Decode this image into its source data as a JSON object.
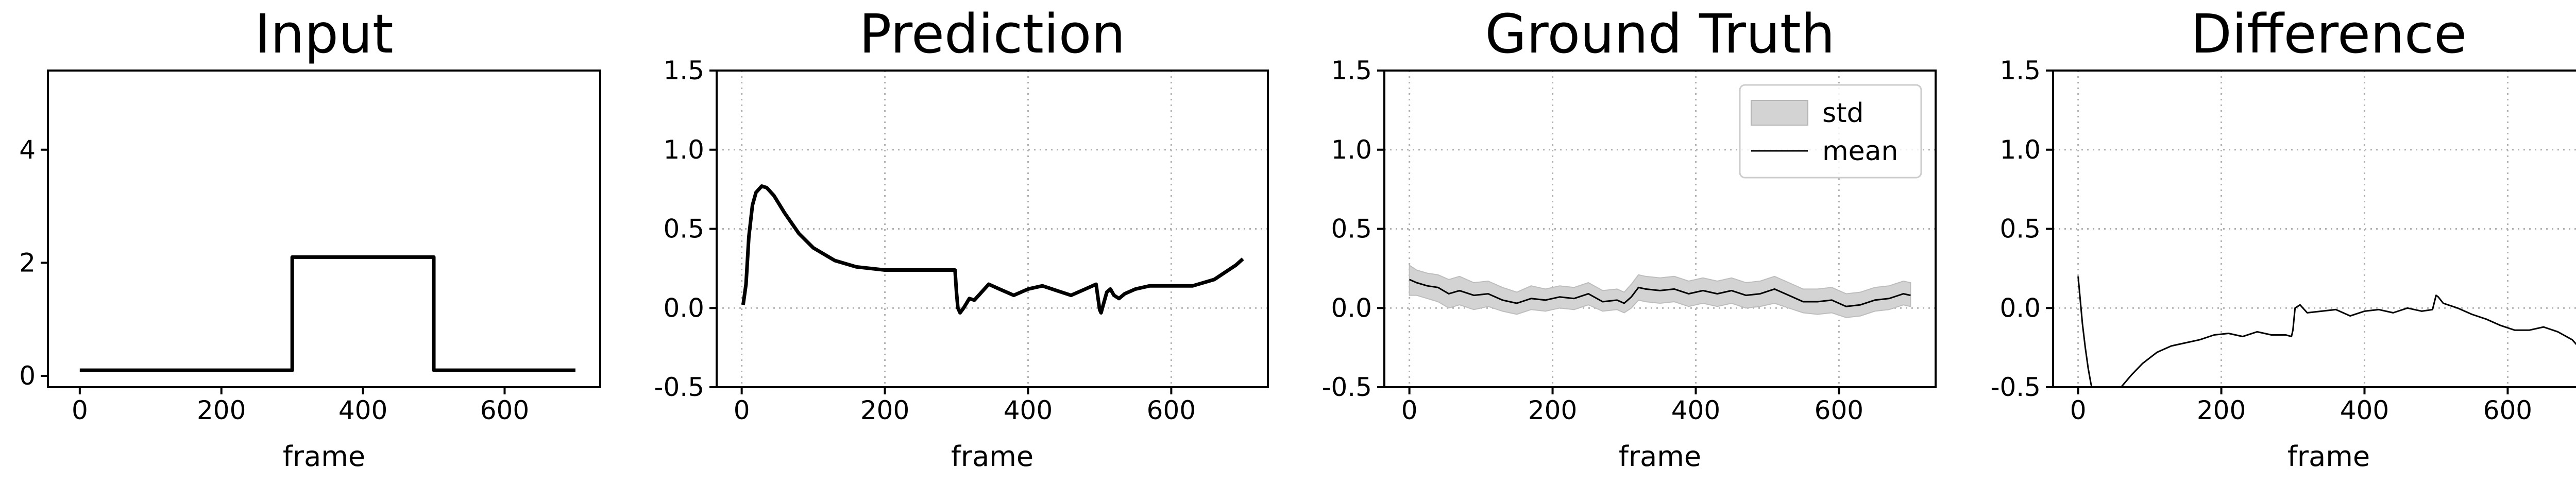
{
  "chart_data": [
    {
      "type": "line",
      "title": "Input",
      "xlabel": "frame",
      "ylabel": "",
      "xlim": [
        -45,
        735
      ],
      "ylim": [
        -0.2,
        5.4
      ],
      "xticks": [
        0,
        200,
        400,
        600
      ],
      "yticks": [
        0,
        2,
        4
      ],
      "grid": false,
      "series": [
        {
          "role": "line",
          "color": "#000000",
          "x": [
            0,
            300,
            300,
            500,
            500,
            700
          ],
          "y": [
            0.1,
            0.1,
            2.1,
            2.1,
            0.1,
            0.1
          ]
        }
      ]
    },
    {
      "type": "line",
      "title": "Prediction",
      "xlabel": "frame",
      "ylabel": "",
      "xlim": [
        -35,
        735
      ],
      "ylim": [
        -0.5,
        1.5
      ],
      "xticks": [
        0,
        200,
        400,
        600
      ],
      "yticks": [
        -0.5,
        0.0,
        0.5,
        1.0,
        1.5
      ],
      "grid": true,
      "series": [
        {
          "role": "line",
          "color": "#000000",
          "x": [
            2,
            6,
            10,
            15,
            20,
            28,
            35,
            45,
            60,
            80,
            100,
            130,
            160,
            200,
            240,
            280,
            298,
            300,
            302,
            305,
            310,
            318,
            325,
            335,
            345,
            360,
            380,
            400,
            420,
            440,
            460,
            480,
            495,
            500,
            502,
            505,
            510,
            515,
            520,
            527,
            535,
            550,
            570,
            600,
            630,
            660,
            690,
            700
          ],
          "y": [
            0.02,
            0.15,
            0.45,
            0.65,
            0.73,
            0.77,
            0.76,
            0.71,
            0.6,
            0.47,
            0.38,
            0.3,
            0.26,
            0.24,
            0.24,
            0.24,
            0.24,
            0.1,
            0.0,
            -0.03,
            0.0,
            0.06,
            0.05,
            0.1,
            0.15,
            0.12,
            0.08,
            0.12,
            0.14,
            0.11,
            0.08,
            0.12,
            0.15,
            -0.01,
            -0.03,
            0.02,
            0.1,
            0.12,
            0.08,
            0.06,
            0.09,
            0.12,
            0.14,
            0.14,
            0.14,
            0.18,
            0.27,
            0.31
          ]
        }
      ]
    },
    {
      "type": "area",
      "title": "Ground Truth",
      "xlabel": "frame",
      "ylabel": "",
      "xlim": [
        -35,
        735
      ],
      "ylim": [
        -0.5,
        1.5
      ],
      "xticks": [
        0,
        200,
        400,
        600
      ],
      "yticks": [
        -0.5,
        0.0,
        0.5,
        1.0,
        1.5
      ],
      "grid": true,
      "legend": {
        "placement": "top-right",
        "entries": [
          "std",
          "mean"
        ]
      },
      "series": [
        {
          "name": "std",
          "role": "band",
          "color": "#d3d3d3",
          "x": [
            0,
            10,
            25,
            40,
            55,
            70,
            90,
            110,
            130,
            150,
            170,
            190,
            210,
            230,
            250,
            270,
            290,
            300,
            310,
            320,
            330,
            350,
            370,
            390,
            410,
            430,
            450,
            470,
            490,
            510,
            530,
            550,
            570,
            590,
            610,
            630,
            650,
            670,
            690,
            700
          ],
          "y_low": [
            0.08,
            0.08,
            0.06,
            0.04,
            0.0,
            0.02,
            -0.01,
            0.01,
            -0.02,
            -0.04,
            -0.01,
            -0.02,
            0.0,
            -0.01,
            0.02,
            -0.02,
            -0.01,
            -0.03,
            0.0,
            0.05,
            0.04,
            0.03,
            0.04,
            0.01,
            0.03,
            0.01,
            0.03,
            0.0,
            0.01,
            0.03,
            0.0,
            -0.03,
            -0.04,
            -0.03,
            -0.06,
            -0.05,
            -0.02,
            -0.01,
            0.02,
            0.01
          ],
          "y_high": [
            0.27,
            0.24,
            0.22,
            0.21,
            0.18,
            0.2,
            0.16,
            0.17,
            0.13,
            0.1,
            0.14,
            0.12,
            0.14,
            0.13,
            0.16,
            0.11,
            0.12,
            0.1,
            0.15,
            0.21,
            0.2,
            0.19,
            0.2,
            0.17,
            0.19,
            0.17,
            0.19,
            0.16,
            0.17,
            0.2,
            0.16,
            0.12,
            0.12,
            0.13,
            0.09,
            0.1,
            0.13,
            0.14,
            0.17,
            0.16
          ]
        },
        {
          "name": "mean",
          "role": "line",
          "color": "#000000",
          "x": [
            0,
            10,
            25,
            40,
            55,
            70,
            90,
            110,
            130,
            150,
            170,
            190,
            210,
            230,
            250,
            270,
            290,
            300,
            310,
            320,
            330,
            350,
            370,
            390,
            410,
            430,
            450,
            470,
            490,
            510,
            530,
            550,
            570,
            590,
            610,
            630,
            650,
            670,
            690,
            700
          ],
          "y": [
            0.18,
            0.16,
            0.14,
            0.13,
            0.09,
            0.11,
            0.08,
            0.09,
            0.05,
            0.03,
            0.06,
            0.05,
            0.07,
            0.06,
            0.09,
            0.04,
            0.05,
            0.03,
            0.07,
            0.13,
            0.12,
            0.11,
            0.12,
            0.09,
            0.11,
            0.09,
            0.11,
            0.08,
            0.09,
            0.12,
            0.08,
            0.04,
            0.04,
            0.05,
            0.01,
            0.02,
            0.05,
            0.06,
            0.09,
            0.08
          ]
        }
      ]
    },
    {
      "type": "line",
      "title": "Difference",
      "xlabel": "frame",
      "ylabel": "",
      "xlim": [
        -35,
        735
      ],
      "ylim": [
        -0.5,
        1.5
      ],
      "xticks": [
        0,
        200,
        400,
        600
      ],
      "yticks": [
        -0.5,
        0.0,
        0.5,
        1.0,
        1.5
      ],
      "grid": true,
      "series": [
        {
          "role": "line",
          "color": "#000000",
          "x": [
            0,
            3,
            6,
            10,
            14,
            18,
            23,
            60,
            75,
            90,
            110,
            130,
            150,
            170,
            190,
            210,
            230,
            250,
            270,
            290,
            298,
            300,
            303,
            310,
            320,
            340,
            360,
            380,
            400,
            420,
            440,
            460,
            480,
            495,
            500,
            503,
            510,
            530,
            550,
            570,
            590,
            610,
            630,
            650,
            670,
            690,
            700
          ],
          "y": [
            0.2,
            0.05,
            -0.1,
            -0.25,
            -0.38,
            -0.48,
            -0.56,
            -0.5,
            -0.42,
            -0.35,
            -0.28,
            -0.24,
            -0.22,
            -0.2,
            -0.17,
            -0.16,
            -0.18,
            -0.15,
            -0.17,
            -0.17,
            -0.18,
            -0.14,
            0.0,
            0.02,
            -0.03,
            -0.02,
            -0.01,
            -0.05,
            -0.02,
            -0.01,
            -0.03,
            0.0,
            -0.02,
            -0.01,
            0.08,
            0.07,
            0.03,
            0.0,
            -0.04,
            -0.07,
            -0.11,
            -0.14,
            -0.14,
            -0.12,
            -0.15,
            -0.2,
            -0.25
          ]
        }
      ]
    }
  ]
}
